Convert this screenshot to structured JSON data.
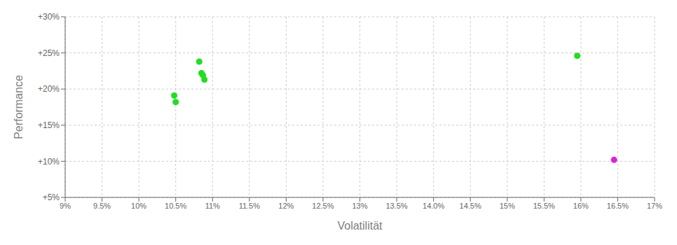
{
  "chart_data": {
    "type": "scatter",
    "xlabel": "Volatilität",
    "ylabel": "Performance",
    "xlim": [
      0.09,
      0.17
    ],
    "ylim": [
      0.05,
      0.3
    ],
    "xticks": [
      {
        "value": 0.09,
        "label": "9%"
      },
      {
        "value": 0.095,
        "label": "9.5%"
      },
      {
        "value": 0.1,
        "label": "10%"
      },
      {
        "value": 0.105,
        "label": "10.5%"
      },
      {
        "value": 0.11,
        "label": "11%"
      },
      {
        "value": 0.115,
        "label": "11.5%"
      },
      {
        "value": 0.12,
        "label": "12%"
      },
      {
        "value": 0.125,
        "label": "12.5%"
      },
      {
        "value": 0.13,
        "label": "13%"
      },
      {
        "value": 0.135,
        "label": "13.5%"
      },
      {
        "value": 0.14,
        "label": "14.0%"
      },
      {
        "value": 0.145,
        "label": "14.5%"
      },
      {
        "value": 0.15,
        "label": "15%"
      },
      {
        "value": 0.155,
        "label": "15.5%"
      },
      {
        "value": 0.16,
        "label": "16%"
      },
      {
        "value": 0.165,
        "label": "16.5%"
      },
      {
        "value": 0.17,
        "label": "17%"
      }
    ],
    "yticks": [
      {
        "value": 0.05,
        "label": "+5%"
      },
      {
        "value": 0.1,
        "label": "+10%"
      },
      {
        "value": 0.15,
        "label": "+15%"
      },
      {
        "value": 0.2,
        "label": "+20%"
      },
      {
        "value": 0.25,
        "label": "+25%"
      },
      {
        "value": 0.3,
        "label": "+30%"
      }
    ],
    "grid": true,
    "series": [
      {
        "color": "#22dd22",
        "x": [
          0.1048,
          0.105,
          0.1082,
          0.1085,
          0.1087,
          0.1089,
          0.1595
        ],
        "values": [
          0.191,
          0.182,
          0.238,
          0.222,
          0.219,
          0.213,
          0.246
        ]
      },
      {
        "color": "#dd22dd",
        "x": [
          0.1645
        ],
        "values": [
          0.102
        ]
      }
    ]
  }
}
